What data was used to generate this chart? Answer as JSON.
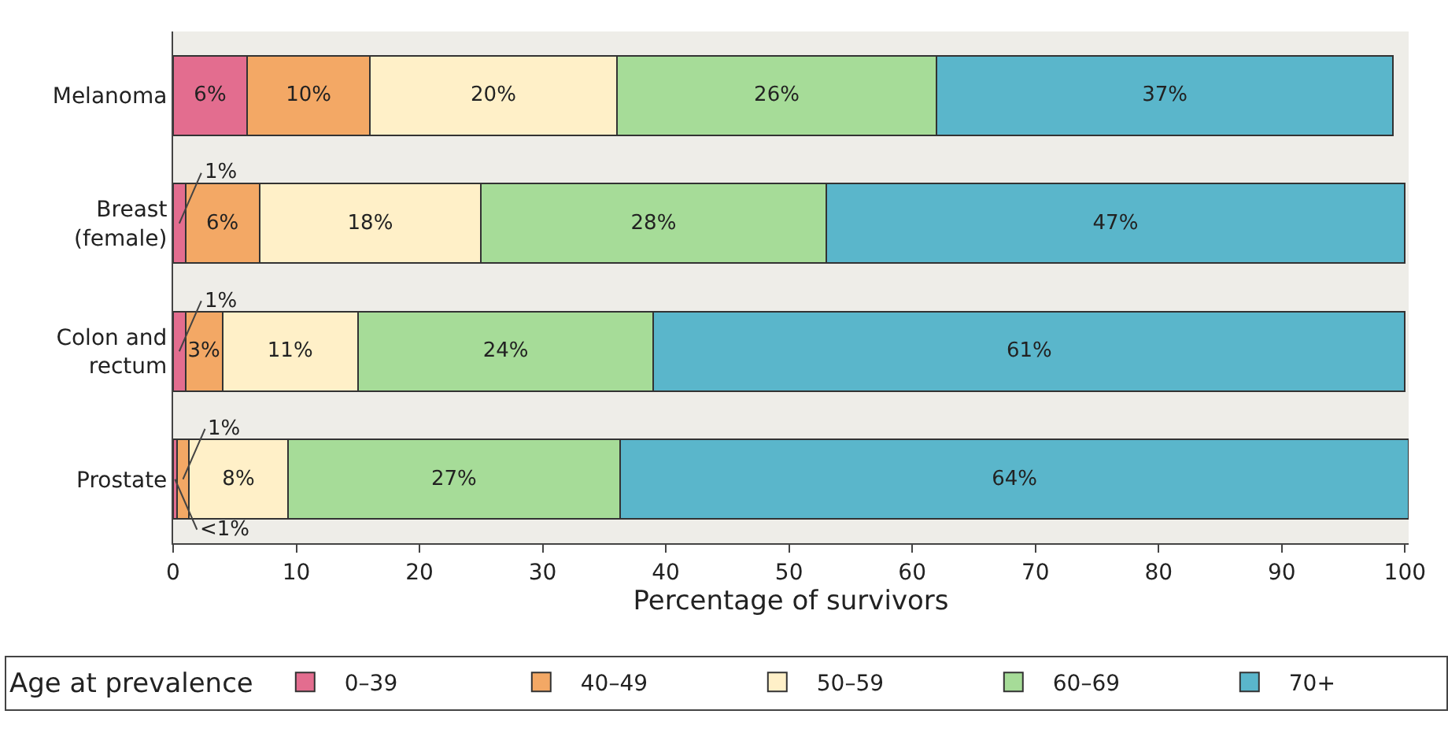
{
  "chart_data": {
    "type": "bar",
    "orientation": "horizontal",
    "stacked": true,
    "categories": [
      "Melanoma",
      "Breast\n(female)",
      "Colon and\nrectum",
      "Prostate"
    ],
    "series": [
      {
        "name": "0–39",
        "color": "#e36d8f",
        "values": [
          6,
          1,
          1,
          0.3
        ],
        "value_labels": [
          "6%",
          "1%",
          "1%",
          "<1%"
        ]
      },
      {
        "name": "40–49",
        "color": "#f3a865",
        "values": [
          10,
          6,
          3,
          1
        ],
        "value_labels": [
          "10%",
          "6%",
          "3%",
          "1%"
        ]
      },
      {
        "name": "50–59",
        "color": "#fff0c8",
        "values": [
          20,
          18,
          11,
          8
        ],
        "value_labels": [
          "20%",
          "18%",
          "11%",
          "8%"
        ]
      },
      {
        "name": "60–69",
        "color": "#a6dc98",
        "values": [
          26,
          28,
          24,
          27
        ],
        "value_labels": [
          "26%",
          "28%",
          "24%",
          "27%"
        ]
      },
      {
        "name": "70+",
        "color": "#5ab6cb",
        "values": [
          37,
          47,
          61,
          64
        ],
        "value_labels": [
          "37%",
          "47%",
          "61%",
          "64%"
        ]
      }
    ],
    "xlabel": "Percentage of survivors",
    "legend_title": "Age at prevalence",
    "legend": "bottom",
    "xlim": [
      0,
      100.3
    ],
    "xticks": [
      0,
      10,
      20,
      30,
      40,
      50,
      60,
      70,
      80,
      90,
      100
    ],
    "grid": false
  }
}
